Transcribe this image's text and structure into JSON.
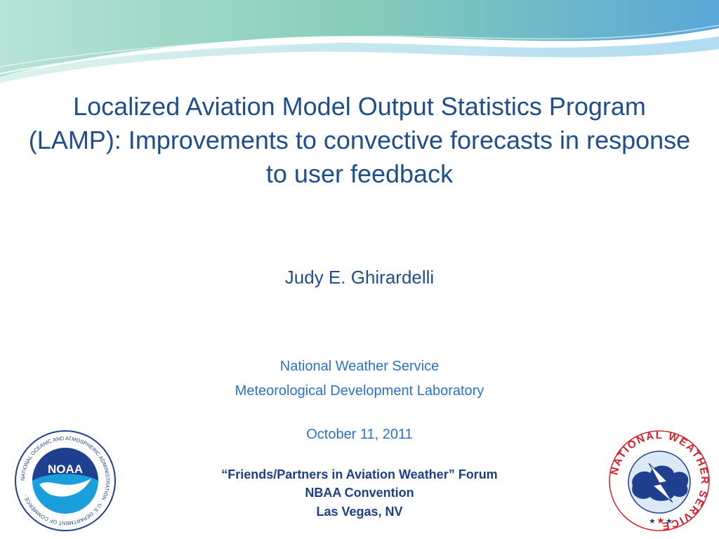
{
  "slide": {
    "title": "Localized Aviation Model Output Statistics Program (LAMP): Improvements to convective forecasts in response to user feedback",
    "author": "Judy E. Ghirardelli",
    "organization": "National Weather Service",
    "lab": "Meteorological Development Laboratory",
    "date": "October 11, 2011",
    "event_line1": "“Friends/Partners in Aviation Weather” Forum",
    "event_line2": "NBAA Convention",
    "event_line3": "Las Vegas, NV"
  },
  "logos": {
    "noaa": {
      "center_text": "NOAA",
      "ring_text": "NATIONAL OCEANIC AND ATMOSPHERIC ADMINISTRATION · U.S. DEPARTMENT OF COMMERCE ·",
      "icon": "noaa-logo-icon"
    },
    "nws": {
      "ring_text": "NATIONAL WEATHER SERVICE",
      "icon": "nws-logo-icon"
    }
  },
  "colors": {
    "title": "#1f4e8c",
    "subtext": "#2a72c8",
    "event": "#1c3f86",
    "wave_teal": "#8fd3c0",
    "wave_blue": "#5a9bd8"
  }
}
